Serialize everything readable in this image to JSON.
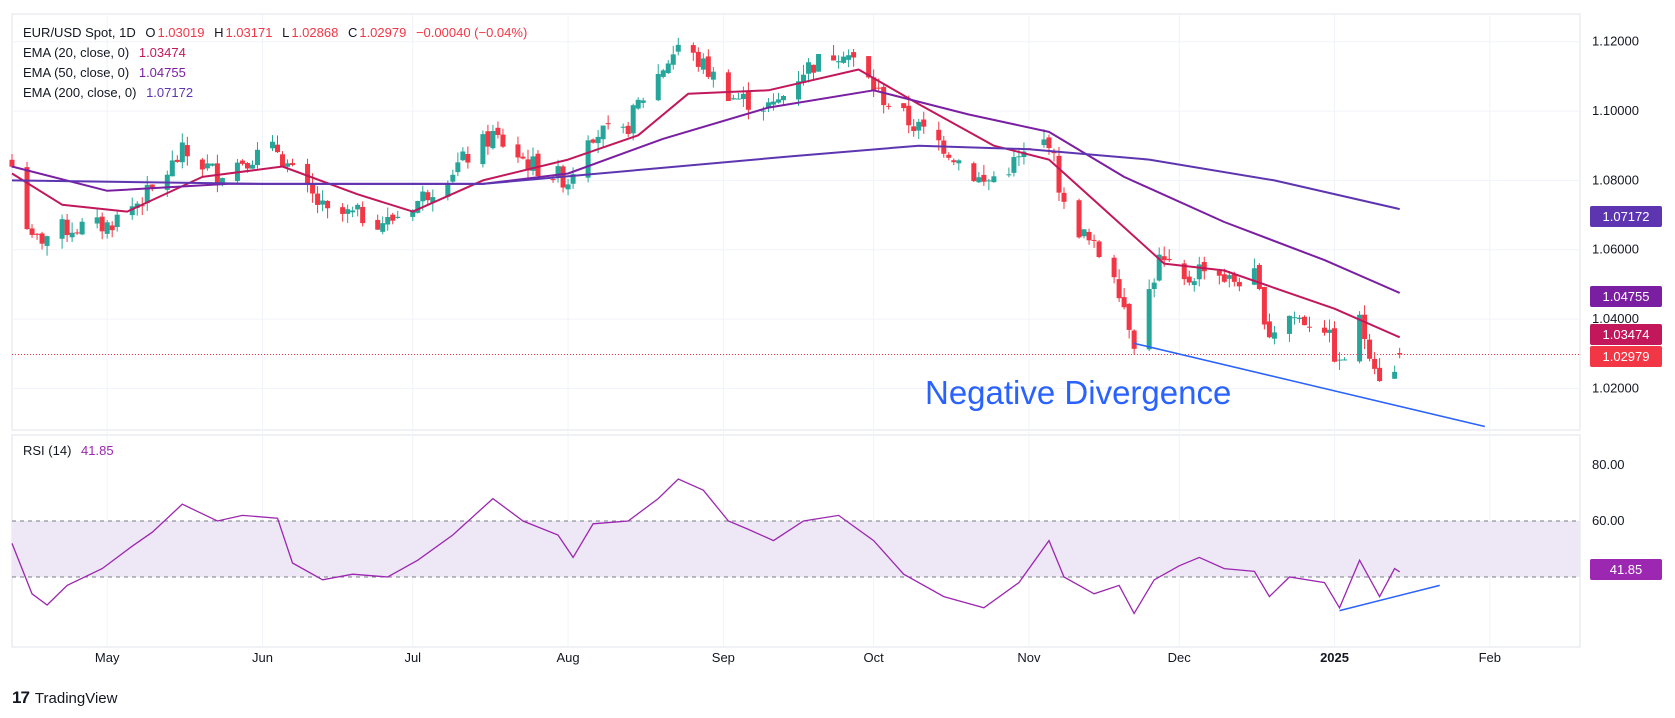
{
  "legend": {
    "symbol": "EUR/USD Spot, 1D",
    "o_label": "O",
    "o_value": "1.03019",
    "h_label": "H",
    "h_value": "1.03171",
    "l_label": "L",
    "l_value": "1.02868",
    "c_label": "C",
    "c_value": "1.02979",
    "change": "−0.00040 (−0.04%)",
    "ema20_label": "EMA (20, close, 0)",
    "ema20_value": "1.03474",
    "ema50_label": "EMA (50, close, 0)",
    "ema50_value": "1.04755",
    "ema200_label": "EMA (200, close, 0)",
    "ema200_value": "1.07172",
    "rsi_label": "RSI (14)",
    "rsi_value": "41.85"
  },
  "annotation": "Negative Divergence",
  "branding": "TradingView",
  "colors": {
    "up": "#26a69a",
    "down": "#f23645",
    "ema20": "#c2185b",
    "ema50": "#7b1fa2",
    "ema200": "#5e35b1",
    "rsi": "#9c27b0",
    "trendline": "#2962ff",
    "rsi_band": "#ede7f6"
  },
  "chart_data": [
    {
      "type": "candlestick",
      "title": "EUR/USD Spot, 1D",
      "x_range": [
        "2024-04-12",
        "2025-02-19"
      ],
      "ylim": [
        1.008,
        1.128
      ],
      "y_ticks": [
        "1.12000",
        "1.10000",
        "1.08000",
        "1.06000",
        "1.04000",
        "1.02000"
      ],
      "x_ticks": [
        {
          "label": "May",
          "date": "2024-05-01"
        },
        {
          "label": "Jun",
          "date": "2024-06-01"
        },
        {
          "label": "Jul",
          "date": "2024-07-01"
        },
        {
          "label": "Aug",
          "date": "2024-08-01"
        },
        {
          "label": "Sep",
          "date": "2024-09-01"
        },
        {
          "label": "Oct",
          "date": "2024-10-01"
        },
        {
          "label": "Nov",
          "date": "2024-11-01"
        },
        {
          "label": "Dec",
          "date": "2024-12-01"
        },
        {
          "label": "2025",
          "date": "2025-01-01"
        },
        {
          "label": "Feb",
          "date": "2025-02-01"
        }
      ],
      "close_anchors": [
        [
          "2024-04-12",
          1.084
        ],
        [
          "2024-04-16",
          1.062
        ],
        [
          "2024-04-22",
          1.066
        ],
        [
          "2024-05-01",
          1.067
        ],
        [
          "2024-05-10",
          1.077
        ],
        [
          "2024-05-16",
          1.088
        ],
        [
          "2024-05-23",
          1.082
        ],
        [
          "2024-05-28",
          1.086
        ],
        [
          "2024-06-04",
          1.089
        ],
        [
          "2024-06-07",
          1.082
        ],
        [
          "2024-06-14",
          1.07
        ],
        [
          "2024-06-20",
          1.07
        ],
        [
          "2024-06-26",
          1.068
        ],
        [
          "2024-07-02",
          1.074
        ],
        [
          "2024-07-08",
          1.082
        ],
        [
          "2024-07-17",
          1.093
        ],
        [
          "2024-07-24",
          1.085
        ],
        [
          "2024-08-01",
          1.08
        ],
        [
          "2024-08-05",
          1.094
        ],
        [
          "2024-08-12",
          1.093
        ],
        [
          "2024-08-15",
          1.102
        ],
        [
          "2024-08-23",
          1.119
        ],
        [
          "2024-08-28",
          1.113
        ],
        [
          "2024-09-03",
          1.104
        ],
        [
          "2024-09-11",
          1.101
        ],
        [
          "2024-09-17",
          1.112
        ],
        [
          "2024-09-25",
          1.118
        ],
        [
          "2024-10-02",
          1.105
        ],
        [
          "2024-10-08",
          1.097
        ],
        [
          "2024-10-15",
          1.09
        ],
        [
          "2024-10-23",
          1.079
        ],
        [
          "2024-10-30",
          1.086
        ],
        [
          "2024-11-05",
          1.092
        ],
        [
          "2024-11-08",
          1.072
        ],
        [
          "2024-11-13",
          1.062
        ],
        [
          "2024-11-18",
          1.054
        ],
        [
          "2024-11-22",
          1.034
        ],
        [
          "2024-11-27",
          1.057
        ],
        [
          "2024-12-02",
          1.05
        ],
        [
          "2024-12-06",
          1.056
        ],
        [
          "2024-12-11",
          1.051
        ],
        [
          "2024-12-16",
          1.052
        ],
        [
          "2024-12-19",
          1.036
        ],
        [
          "2024-12-23",
          1.041
        ],
        [
          "2024-12-30",
          1.038
        ],
        [
          "2025-01-02",
          1.026
        ],
        [
          "2025-01-06",
          1.039
        ],
        [
          "2025-01-10",
          1.024
        ],
        [
          "2025-01-13",
          1.024
        ],
        [
          "2025-01-14",
          1.02979
        ]
      ],
      "series": [
        {
          "name": "EMA (20, close, 0)",
          "last": 1.03474,
          "points": [
            [
              "2024-04-12",
              1.082
            ],
            [
              "2024-04-22",
              1.073
            ],
            [
              "2024-05-05",
              1.071
            ],
            [
              "2024-05-20",
              1.081
            ],
            [
              "2024-06-05",
              1.084
            ],
            [
              "2024-06-20",
              1.076
            ],
            [
              "2024-07-01",
              1.071
            ],
            [
              "2024-07-15",
              1.08
            ],
            [
              "2024-08-01",
              1.086
            ],
            [
              "2024-08-15",
              1.093
            ],
            [
              "2024-08-25",
              1.105
            ],
            [
              "2024-09-10",
              1.106
            ],
            [
              "2024-09-28",
              1.112
            ],
            [
              "2024-10-10",
              1.102
            ],
            [
              "2024-10-25",
              1.09
            ],
            [
              "2024-11-05",
              1.086
            ],
            [
              "2024-11-15",
              1.073
            ],
            [
              "2024-11-28",
              1.056
            ],
            [
              "2024-12-10",
              1.054
            ],
            [
              "2024-12-20",
              1.049
            ],
            [
              "2025-01-01",
              1.043
            ],
            [
              "2025-01-14",
              1.03474
            ]
          ]
        },
        {
          "name": "EMA (50, close, 0)",
          "last": 1.04755,
          "points": [
            [
              "2024-04-12",
              1.084
            ],
            [
              "2024-05-01",
              1.077
            ],
            [
              "2024-05-25",
              1.079
            ],
            [
              "2024-06-20",
              1.079
            ],
            [
              "2024-07-15",
              1.079
            ],
            [
              "2024-08-01",
              1.082
            ],
            [
              "2024-08-20",
              1.092
            ],
            [
              "2024-09-10",
              1.101
            ],
            [
              "2024-10-01",
              1.106
            ],
            [
              "2024-10-20",
              1.099
            ],
            [
              "2024-11-05",
              1.094
            ],
            [
              "2024-11-20",
              1.081
            ],
            [
              "2024-12-10",
              1.068
            ],
            [
              "2024-12-30",
              1.057
            ],
            [
              "2025-01-14",
              1.04755
            ]
          ]
        },
        {
          "name": "EMA (200, close, 0)",
          "last": 1.07172,
          "points": [
            [
              "2024-04-12",
              1.08
            ],
            [
              "2024-06-01",
              1.079
            ],
            [
              "2024-07-15",
              1.079
            ],
            [
              "2024-08-15",
              1.083
            ],
            [
              "2024-09-15",
              1.087
            ],
            [
              "2024-10-10",
              1.09
            ],
            [
              "2024-11-01",
              1.089
            ],
            [
              "2024-11-25",
              1.086
            ],
            [
              "2024-12-20",
              1.08
            ],
            [
              "2025-01-14",
              1.07172
            ]
          ]
        }
      ],
      "trendline": [
        [
          "2024-11-22",
          1.033
        ],
        [
          "2025-01-31",
          1.009
        ]
      ],
      "last_price": 1.02979
    },
    {
      "type": "line",
      "title": "RSI (14)",
      "ylim": [
        15,
        80
      ],
      "y_ticks": [
        "80.00",
        "60.00"
      ],
      "band": [
        40,
        60
      ],
      "last": 41.85,
      "series": [
        {
          "name": "RSI (14)",
          "points": [
            [
              "2024-04-12",
              52
            ],
            [
              "2024-04-16",
              34
            ],
            [
              "2024-04-19",
              30
            ],
            [
              "2024-04-23",
              37
            ],
            [
              "2024-04-30",
              43
            ],
            [
              "2024-05-06",
              51
            ],
            [
              "2024-05-10",
              56
            ],
            [
              "2024-05-16",
              66
            ],
            [
              "2024-05-23",
              60
            ],
            [
              "2024-05-28",
              62
            ],
            [
              "2024-06-04",
              61
            ],
            [
              "2024-06-07",
              45
            ],
            [
              "2024-06-13",
              39
            ],
            [
              "2024-06-19",
              41
            ],
            [
              "2024-06-26",
              40
            ],
            [
              "2024-07-02",
              46
            ],
            [
              "2024-07-09",
              55
            ],
            [
              "2024-07-17",
              68
            ],
            [
              "2024-07-23",
              60
            ],
            [
              "2024-07-30",
              55
            ],
            [
              "2024-08-02",
              47
            ],
            [
              "2024-08-06",
              59
            ],
            [
              "2024-08-13",
              60
            ],
            [
              "2024-08-19",
              68
            ],
            [
              "2024-08-23",
              75
            ],
            [
              "2024-08-28",
              71
            ],
            [
              "2024-09-02",
              60
            ],
            [
              "2024-09-06",
              57
            ],
            [
              "2024-09-11",
              53
            ],
            [
              "2024-09-17",
              60
            ],
            [
              "2024-09-24",
              62
            ],
            [
              "2024-10-01",
              53
            ],
            [
              "2024-10-07",
              41
            ],
            [
              "2024-10-15",
              33
            ],
            [
              "2024-10-23",
              29
            ],
            [
              "2024-10-30",
              38
            ],
            [
              "2024-11-05",
              53
            ],
            [
              "2024-11-08",
              40
            ],
            [
              "2024-11-14",
              34
            ],
            [
              "2024-11-19",
              37
            ],
            [
              "2024-11-22",
              27
            ],
            [
              "2024-11-26",
              39
            ],
            [
              "2024-12-01",
              44
            ],
            [
              "2024-12-05",
              47
            ],
            [
              "2024-12-10",
              43
            ],
            [
              "2024-12-16",
              42
            ],
            [
              "2024-12-19",
              33
            ],
            [
              "2024-12-23",
              40
            ],
            [
              "2024-12-30",
              38
            ],
            [
              "2025-01-02",
              29
            ],
            [
              "2025-01-06",
              46
            ],
            [
              "2025-01-10",
              33
            ],
            [
              "2025-01-13",
              43
            ],
            [
              "2025-01-14",
              41.85
            ]
          ]
        }
      ],
      "trendline": [
        [
          "2025-01-02",
          28
        ],
        [
          "2025-01-22",
          37
        ]
      ]
    }
  ]
}
